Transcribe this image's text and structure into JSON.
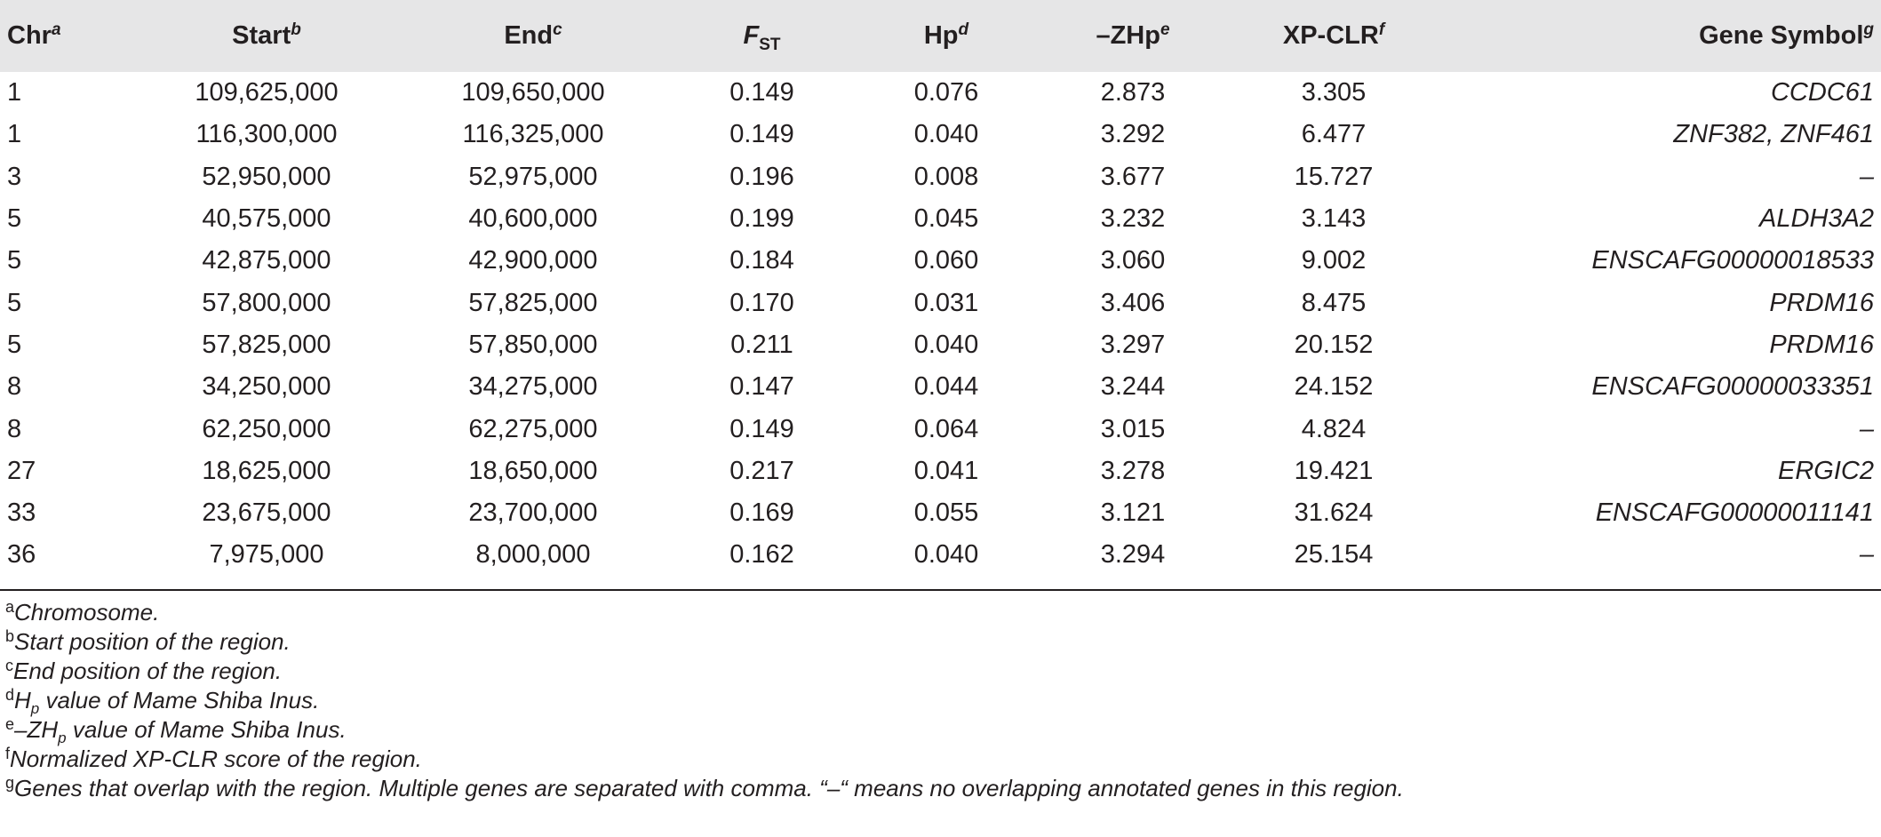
{
  "table": {
    "columns": [
      {
        "label": "Chr",
        "sup": "a"
      },
      {
        "label": "Start",
        "sup": "b"
      },
      {
        "label": "End",
        "sup": "c"
      },
      {
        "label": "F",
        "sub": "ST"
      },
      {
        "label": "Hp",
        "sup": "d"
      },
      {
        "label": "–ZHp",
        "sup": "e"
      },
      {
        "label": "XP-CLR",
        "sup": "f"
      },
      {
        "label": "Gene Symbol",
        "sup": "g"
      }
    ],
    "rows": [
      [
        "1",
        "109,625,000",
        "109,650,000",
        "0.149",
        "0.076",
        "2.873",
        "3.305",
        "CCDC61"
      ],
      [
        "1",
        "116,300,000",
        "116,325,000",
        "0.149",
        "0.040",
        "3.292",
        "6.477",
        "ZNF382, ZNF461"
      ],
      [
        "3",
        "52,950,000",
        "52,975,000",
        "0.196",
        "0.008",
        "3.677",
        "15.727",
        "–"
      ],
      [
        "5",
        "40,575,000",
        "40,600,000",
        "0.199",
        "0.045",
        "3.232",
        "3.143",
        "ALDH3A2"
      ],
      [
        "5",
        "42,875,000",
        "42,900,000",
        "0.184",
        "0.060",
        "3.060",
        "9.002",
        "ENSCAFG00000018533"
      ],
      [
        "5",
        "57,800,000",
        "57,825,000",
        "0.170",
        "0.031",
        "3.406",
        "8.475",
        "PRDM16"
      ],
      [
        "5",
        "57,825,000",
        "57,850,000",
        "0.211",
        "0.040",
        "3.297",
        "20.152",
        "PRDM16"
      ],
      [
        "8",
        "34,250,000",
        "34,275,000",
        "0.147",
        "0.044",
        "3.244",
        "24.152",
        "ENSCAFG00000033351"
      ],
      [
        "8",
        "62,250,000",
        "62,275,000",
        "0.149",
        "0.064",
        "3.015",
        "4.824",
        "–"
      ],
      [
        "27",
        "18,625,000",
        "18,650,000",
        "0.217",
        "0.041",
        "3.278",
        "19.421",
        "ERGIC2"
      ],
      [
        "33",
        "23,675,000",
        "23,700,000",
        "0.169",
        "0.055",
        "3.121",
        "31.624",
        "ENSCAFG00000011141"
      ],
      [
        "36",
        "7,975,000",
        "8,000,000",
        "0.162",
        "0.040",
        "3.294",
        "25.154",
        "–"
      ]
    ]
  },
  "footnotes": [
    {
      "mark": "a",
      "text": "Chromosome."
    },
    {
      "mark": "b",
      "text": "Start position of the region."
    },
    {
      "mark": "c",
      "text": "End position of the region."
    },
    {
      "mark": "d",
      "pre": "H",
      "sub": "p",
      "text": " value of Mame Shiba Inus."
    },
    {
      "mark": "e",
      "pre": "–ZH",
      "sub": "p",
      "text": " value of Mame Shiba Inus."
    },
    {
      "mark": "f",
      "text": "Normalized XP-CLR score of the region."
    },
    {
      "mark": "g",
      "text": "Genes that overlap with the region. Multiple genes are separated with comma. “–“ means no overlapping annotated genes in this region."
    }
  ]
}
